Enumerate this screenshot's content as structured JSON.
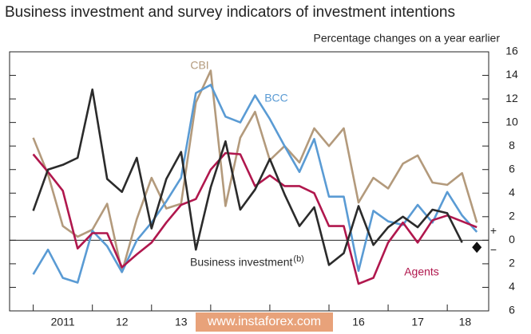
{
  "chart_data": {
    "type": "line",
    "title": "Business investment and survey indicators of investment intentions",
    "subtitle": "Percentage changes on a year earlier",
    "x": [
      2011.0,
      2011.25,
      2011.5,
      2011.75,
      2012.0,
      2012.25,
      2012.5,
      2012.75,
      2013.0,
      2013.25,
      2013.5,
      2013.75,
      2014.0,
      2014.25,
      2014.5,
      2014.75,
      2015.0,
      2015.25,
      2015.5,
      2015.75,
      2016.0,
      2016.25,
      2016.5,
      2016.75,
      2017.0,
      2017.25,
      2017.5,
      2017.75,
      2018.0,
      2018.25,
      2018.5
    ],
    "series": [
      {
        "name": "CBI",
        "color": "#b39a7c",
        "values": [
          8.7,
          5.6,
          1.2,
          0.3,
          0.9,
          3.1,
          -2.7,
          1.8,
          5.3,
          2.7,
          3.1,
          11.7,
          14.4,
          2.9,
          8.7,
          10.9,
          6.8,
          8.0,
          6.6,
          9.5,
          8.0,
          9.5,
          3.2,
          5.3,
          4.4,
          6.5,
          7.2,
          4.9,
          4.7,
          5.7,
          1.5
        ]
      },
      {
        "name": "BCC",
        "color": "#5a9bd4",
        "values": [
          -2.9,
          -0.8,
          -3.2,
          -3.6,
          0.8,
          -0.5,
          -2.7,
          0,
          1.5,
          3.3,
          5.3,
          12.5,
          13.2,
          10.5,
          10.0,
          12.3,
          10.3,
          8.0,
          5.8,
          8.6,
          3.7,
          3.7,
          -2.6,
          2.5,
          1.6,
          1.3,
          3.0,
          1.5,
          4.1,
          2.1,
          0.7
        ]
      },
      {
        "name": "Agents",
        "color": "#b0174d",
        "values": [
          7.3,
          5.8,
          4.2,
          -0.7,
          0.6,
          0.6,
          -2.3,
          -1.2,
          -0.2,
          1.5,
          3.0,
          3.5,
          6.0,
          7.4,
          7.3,
          4.6,
          5.5,
          4.6,
          4.6,
          4.0,
          1.2,
          1.2,
          -3.7,
          -3.2,
          -0.2,
          1.5,
          -0.2,
          1.7,
          2.1,
          1.6,
          1.1
        ]
      },
      {
        "name": "Business investment",
        "name_note": "(b)",
        "color": "#2b2b2b",
        "values": [
          2.5,
          6.0,
          6.4,
          7.0,
          12.8,
          5.2,
          4.1,
          7.0,
          1.0,
          5.2,
          7.5,
          -0.8,
          4.5,
          8.4,
          2.6,
          4.3,
          6.9,
          3.9,
          1.2,
          2.8,
          -2.1,
          -1.1,
          2.9,
          -0.4,
          1.1,
          2.0,
          1.1,
          2.6,
          2.3,
          -0.2,
          null
        ]
      }
    ],
    "marker": {
      "x": 2018.5,
      "value": -0.6,
      "color": "#111111"
    },
    "xlim": [
      2010.6,
      2018.7
    ],
    "xticks": [
      2011,
      2012,
      2013,
      2014,
      2015,
      2016,
      2017,
      2018
    ],
    "xtick_labels": [
      {
        "value": 2011.5,
        "label": "2011"
      },
      {
        "value": 2012.5,
        "label": "12"
      },
      {
        "value": 2013.5,
        "label": "13"
      },
      {
        "value": 2016.5,
        "label": "16"
      },
      {
        "value": 2017.5,
        "label": "17"
      },
      {
        "value": 2018.3,
        "label": "18"
      }
    ],
    "ylim": [
      -6,
      16
    ],
    "yticks": [
      {
        "value": -6,
        "label": "6"
      },
      {
        "value": -4,
        "label": "4"
      },
      {
        "value": -2,
        "label": "2"
      },
      0,
      2,
      4,
      6,
      8,
      10,
      12,
      14,
      16
    ],
    "sign_labels": {
      "plus": "+",
      "minus": "−"
    },
    "watermark": "www.instaforex.com"
  }
}
